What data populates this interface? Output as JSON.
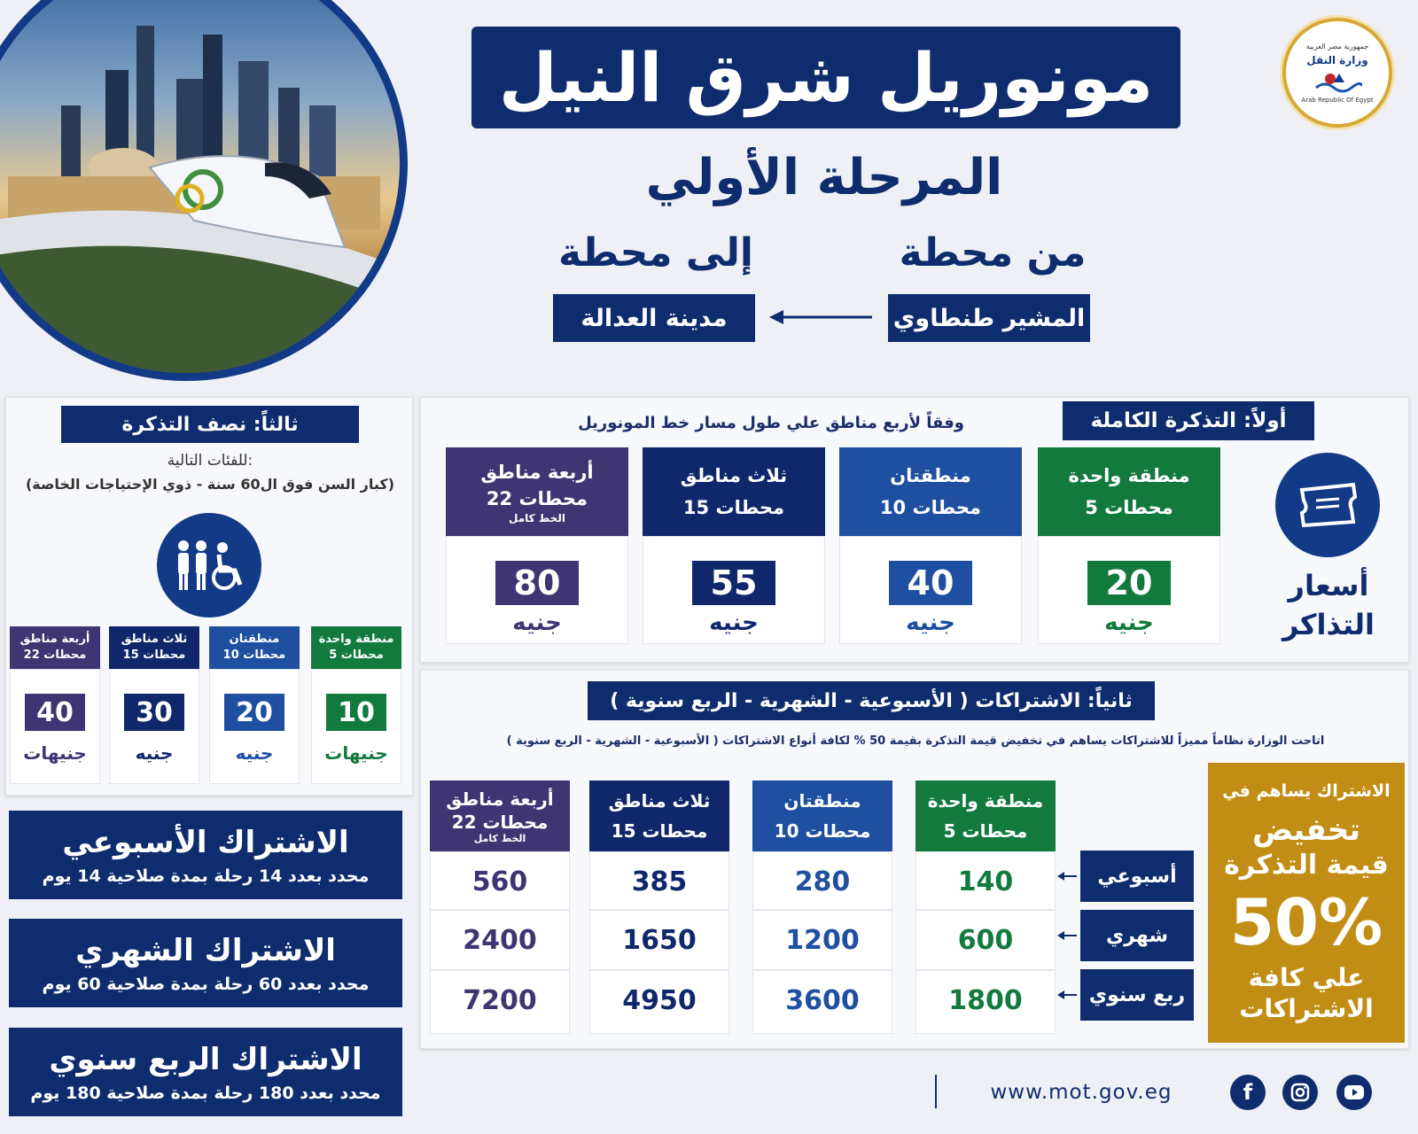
{
  "colors": {
    "navy": "#0f2d6e",
    "green": "#127a3d",
    "blue": "#1e4fa0",
    "dark_navy": "#10286b",
    "purple": "#3e3572",
    "gold": "#c28d14"
  },
  "header": {
    "title": "مونوريل شرق النيل",
    "phase": "المرحلة الأولي",
    "from_label": "من محطة",
    "to_label": "إلى محطة",
    "from_station": "المشير طنطاوي",
    "to_station": "مدينة العدالة",
    "logo_text_top": "جمهورية مصر العربية",
    "logo_text_mid": "وزارة النقل",
    "logo_text_bottom": "Arab Republic Of Egypt"
  },
  "full_ticket": {
    "heading": "أولاً: التذكرة الكاملة",
    "subheading": "وفقاً لأربع مناطق علي طول مسار خط المونوريل",
    "icon_label_1": "أسعار",
    "icon_label_2": "التذاكر",
    "unit": "جنيه",
    "zones": [
      {
        "name": "منطقة واحدة",
        "stations": "5 محطات",
        "note": "",
        "price": "20",
        "color": "#127a3d"
      },
      {
        "name": "منطقتان",
        "stations": "10 محطات",
        "note": "",
        "price": "40",
        "color": "#1e4fa0"
      },
      {
        "name": "ثلاث مناطق",
        "stations": "15 محطات",
        "note": "",
        "price": "55",
        "color": "#10286b"
      },
      {
        "name": "أربعة مناطق",
        "stations": "22 محطات",
        "note": "الخط كامل",
        "price": "80",
        "color": "#3e3572"
      }
    ]
  },
  "half_ticket": {
    "heading": "ثالثاً: نصف التذكرة",
    "categories_label": "للفئات التالية:",
    "categories": "(كبار السن فوق ال60 سنة - ذوي الإحتياجات الخاصة)",
    "zones": [
      {
        "name": "منطقة واحدة",
        "stations": "5 محطات",
        "price": "10",
        "unit": "جنيهات",
        "color": "#127a3d"
      },
      {
        "name": "منطقتان",
        "stations": "10 محطات",
        "price": "20",
        "unit": "جنيه",
        "color": "#1e4fa0"
      },
      {
        "name": "ثلاث مناطق",
        "stations": "15 محطات",
        "price": "30",
        "unit": "جنيه",
        "color": "#10286b"
      },
      {
        "name": "أربعة مناطق",
        "stations": "22 محطات",
        "price": "40",
        "unit": "جنيهات",
        "color": "#3e3572"
      }
    ]
  },
  "subscriptions": {
    "heading": "ثانياً: الاشتراكات ( الأسبوعية - الشهرية - الربع سنوية )",
    "description": "اتاحت الوزارة نظاماً مميزاً للاشتراكات يساهم في تخفيض قيمة التذكرة بقيمة 50 % لكافة أنواع الاشتراكات ( الأسبوعية - الشهرية - الربع سنوية )",
    "promo": {
      "line1": "الاشتراك يساهم في",
      "line2": "تخفيض",
      "line3": "قيمة التذكرة",
      "percent": "50%",
      "line4": "علي كافة",
      "line5": "الاشتراكات"
    },
    "zones": [
      {
        "name": "منطقة واحدة",
        "stations": "5 محطات",
        "note": "",
        "color": "#127a3d",
        "values": [
          "140",
          "600",
          "1800"
        ]
      },
      {
        "name": "منطقتان",
        "stations": "10 محطات",
        "note": "",
        "color": "#1e4fa0",
        "values": [
          "280",
          "1200",
          "3600"
        ]
      },
      {
        "name": "ثلاث مناطق",
        "stations": "15 محطات",
        "note": "",
        "color": "#10286b",
        "values": [
          "385",
          "1650",
          "4950"
        ]
      },
      {
        "name": "أربعة مناطق",
        "stations": "22 محطات",
        "note": "الخط كامل",
        "color": "#3e3572",
        "values": [
          "560",
          "2400",
          "7200"
        ]
      }
    ],
    "rows": [
      "أسبوعي",
      "شهري",
      "ربع سنوي"
    ]
  },
  "plans": [
    {
      "title": "الاشتراك الأسبوعي",
      "details": "محدد بعدد 14 رحلة بمدة صلاحية 14 يوم"
    },
    {
      "title": "الاشتراك الشهري",
      "details": "محدد بعدد 60 رحلة بمدة صلاحية 60 يوم"
    },
    {
      "title": "الاشتراك الربع سنوي",
      "details": "محدد بعدد 180 رحلة بمدة صلاحية 180 يوم"
    }
  ],
  "footer": {
    "website": "www.mot.gov.eg",
    "icons": [
      "youtube-icon",
      "instagram-icon",
      "facebook-icon"
    ]
  }
}
